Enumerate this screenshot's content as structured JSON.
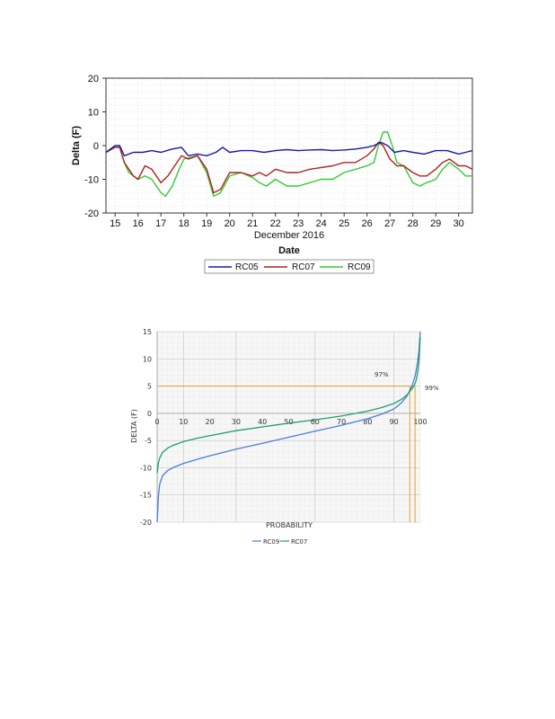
{
  "chart_data": [
    {
      "type": "line",
      "ylabel": "Delta  (F)",
      "xlabel": "Date",
      "xsublabel": "December 2016",
      "ylim": [
        -20,
        20
      ],
      "xlim": [
        14.6,
        30.6
      ],
      "yticks": [
        20,
        10,
        0,
        -10,
        -20
      ],
      "ytick_labels": [
        "20",
        "10",
        "0",
        "-10",
        "-20"
      ],
      "xticks": [
        15,
        16,
        17,
        18,
        19,
        20,
        21,
        22,
        23,
        24,
        25,
        26,
        27,
        28,
        29,
        30
      ],
      "xtick_labels": [
        "15",
        "16",
        "17",
        "18",
        "19",
        "20",
        "21",
        "22",
        "23",
        "24",
        "25",
        "26",
        "27",
        "28",
        "29",
        "30"
      ],
      "series": [
        {
          "name": "RC05",
          "color": "#1a1aa6",
          "x": [
            14.6,
            15.0,
            15.2,
            15.4,
            15.8,
            16.2,
            16.6,
            17.0,
            17.5,
            17.9,
            18.2,
            18.6,
            19.0,
            19.4,
            19.7,
            20.0,
            20.5,
            21.0,
            21.5,
            22.0,
            22.5,
            23.0,
            23.5,
            24.0,
            24.5,
            25.0,
            25.5,
            26.0,
            26.3,
            26.6,
            26.9,
            27.2,
            27.6,
            28.0,
            28.5,
            29.0,
            29.5,
            30.0,
            30.3,
            30.6
          ],
          "y": [
            -2,
            0,
            0,
            -3,
            -2,
            -2,
            -1.5,
            -2,
            -1,
            -0.5,
            -3,
            -2.5,
            -3,
            -2,
            -0.5,
            -2,
            -1.5,
            -1.5,
            -2,
            -1.5,
            -1.2,
            -1.5,
            -1.3,
            -1.2,
            -1.5,
            -1.3,
            -1,
            -0.5,
            0,
            1,
            0,
            -2,
            -1.5,
            -2,
            -2.5,
            -1.5,
            -1.5,
            -2.5,
            -2,
            -1.5
          ]
        },
        {
          "name": "RC07",
          "color": "#b22222",
          "x": [
            14.6,
            15.0,
            15.2,
            15.4,
            15.6,
            15.8,
            16.0,
            16.3,
            16.6,
            16.8,
            17.0,
            17.3,
            17.6,
            17.9,
            18.2,
            18.6,
            19.0,
            19.3,
            19.6,
            20.0,
            20.5,
            21.0,
            21.3,
            21.6,
            22.0,
            22.5,
            23.0,
            23.5,
            24.0,
            24.5,
            25.0,
            25.5,
            26.0,
            26.3,
            26.5,
            26.7,
            27.0,
            27.3,
            27.6,
            28.0,
            28.3,
            28.6,
            29.0,
            29.3,
            29.6,
            30.0,
            30.3,
            30.6
          ],
          "y": [
            -2,
            -0.5,
            -0.5,
            -5,
            -7,
            -9,
            -10,
            -6,
            -7,
            -9,
            -11,
            -9,
            -6,
            -3,
            -4,
            -3,
            -7,
            -14,
            -13,
            -8,
            -8,
            -9,
            -8,
            -9,
            -7,
            -8,
            -8,
            -7,
            -6.5,
            -6,
            -5,
            -5,
            -3,
            -1,
            1,
            0,
            -4,
            -6,
            -6,
            -8,
            -9,
            -9,
            -7,
            -5,
            -4,
            -6,
            -6,
            -7
          ]
        },
        {
          "name": "RC09",
          "color": "#33cc33",
          "x": [
            14.6,
            15.0,
            15.2,
            15.4,
            15.6,
            15.8,
            16.0,
            16.3,
            16.6,
            16.8,
            17.0,
            17.2,
            17.5,
            17.8,
            18.0,
            18.6,
            19.0,
            19.3,
            19.6,
            20.0,
            20.5,
            21.0,
            21.3,
            21.6,
            22.0,
            22.5,
            23.0,
            23.5,
            24.0,
            24.5,
            25.0,
            25.5,
            26.0,
            26.3,
            26.5,
            26.7,
            26.9,
            27.1,
            27.3,
            27.6,
            28.0,
            28.3,
            28.6,
            29.0,
            29.3,
            29.6,
            30.0,
            30.3,
            30.6
          ],
          "y": [
            -2,
            -0.5,
            -0.5,
            -5,
            -8,
            -9,
            -10,
            -9,
            -10,
            -12,
            -14,
            -15,
            -12,
            -7,
            -4,
            -3,
            -8,
            -15,
            -14,
            -9,
            -8,
            -9.5,
            -11,
            -12,
            -10,
            -12,
            -12,
            -11,
            -10,
            -10,
            -8,
            -7,
            -6,
            -5,
            0,
            4,
            4,
            0,
            -5,
            -6,
            -11,
            -12,
            -11,
            -10,
            -7,
            -5,
            -7,
            -9,
            -9
          ]
        }
      ]
    },
    {
      "type": "line",
      "ylabel": "DELTA (F)",
      "xlabel": "PROBABILITY",
      "ylim": [
        -20,
        15
      ],
      "xlim": [
        0,
        100
      ],
      "yticks": [
        15,
        10,
        5,
        0,
        -5,
        -10,
        -15,
        -20
      ],
      "ytick_labels": [
        "15",
        "10",
        "5",
        "0",
        "-5",
        "-10",
        "-15",
        "-20"
      ],
      "xticks": [
        0,
        10,
        20,
        30,
        40,
        50,
        60,
        70,
        80,
        90,
        100
      ],
      "xtick_labels": [
        "0",
        "10",
        "20",
        "30",
        "40",
        "50",
        "60",
        "70",
        "80",
        "90",
        "100"
      ],
      "threshold_y": 5,
      "threshold_x": [
        96,
        98
      ],
      "annotations": [
        "97%",
        "99%"
      ],
      "series": [
        {
          "name": "RC09",
          "color": "#4a7fd4",
          "x": [
            0,
            0.5,
            1,
            2,
            4,
            6,
            10,
            15,
            20,
            30,
            40,
            50,
            60,
            70,
            80,
            85,
            90,
            93,
            95,
            96,
            97,
            98,
            98.5,
            99,
            99.5,
            100
          ],
          "y": [
            -20,
            -15,
            -13,
            -11.5,
            -10.5,
            -10,
            -9.2,
            -8.5,
            -7.8,
            -6.6,
            -5.5,
            -4.4,
            -3.3,
            -2.2,
            -1,
            -0.2,
            0.8,
            2,
            3.2,
            4.2,
            5.2,
            6.8,
            8,
            9.5,
            11.5,
            15
          ]
        },
        {
          "name": "RC07",
          "color": "#1f9e6a",
          "x": [
            0,
            0.5,
            1,
            2,
            4,
            6,
            10,
            15,
            20,
            30,
            40,
            50,
            60,
            70,
            80,
            85,
            90,
            93,
            95,
            96,
            97,
            98,
            98.5,
            99,
            99.5,
            100
          ],
          "y": [
            -11,
            -9,
            -8.2,
            -7.2,
            -6.4,
            -5.9,
            -5.2,
            -4.6,
            -4.1,
            -3.2,
            -2.5,
            -1.8,
            -1.2,
            -0.5,
            0.4,
            1,
            1.8,
            2.6,
            3.4,
            4,
            4.6,
            5.4,
            6.2,
            7.5,
            9.5,
            14
          ]
        }
      ]
    }
  ]
}
